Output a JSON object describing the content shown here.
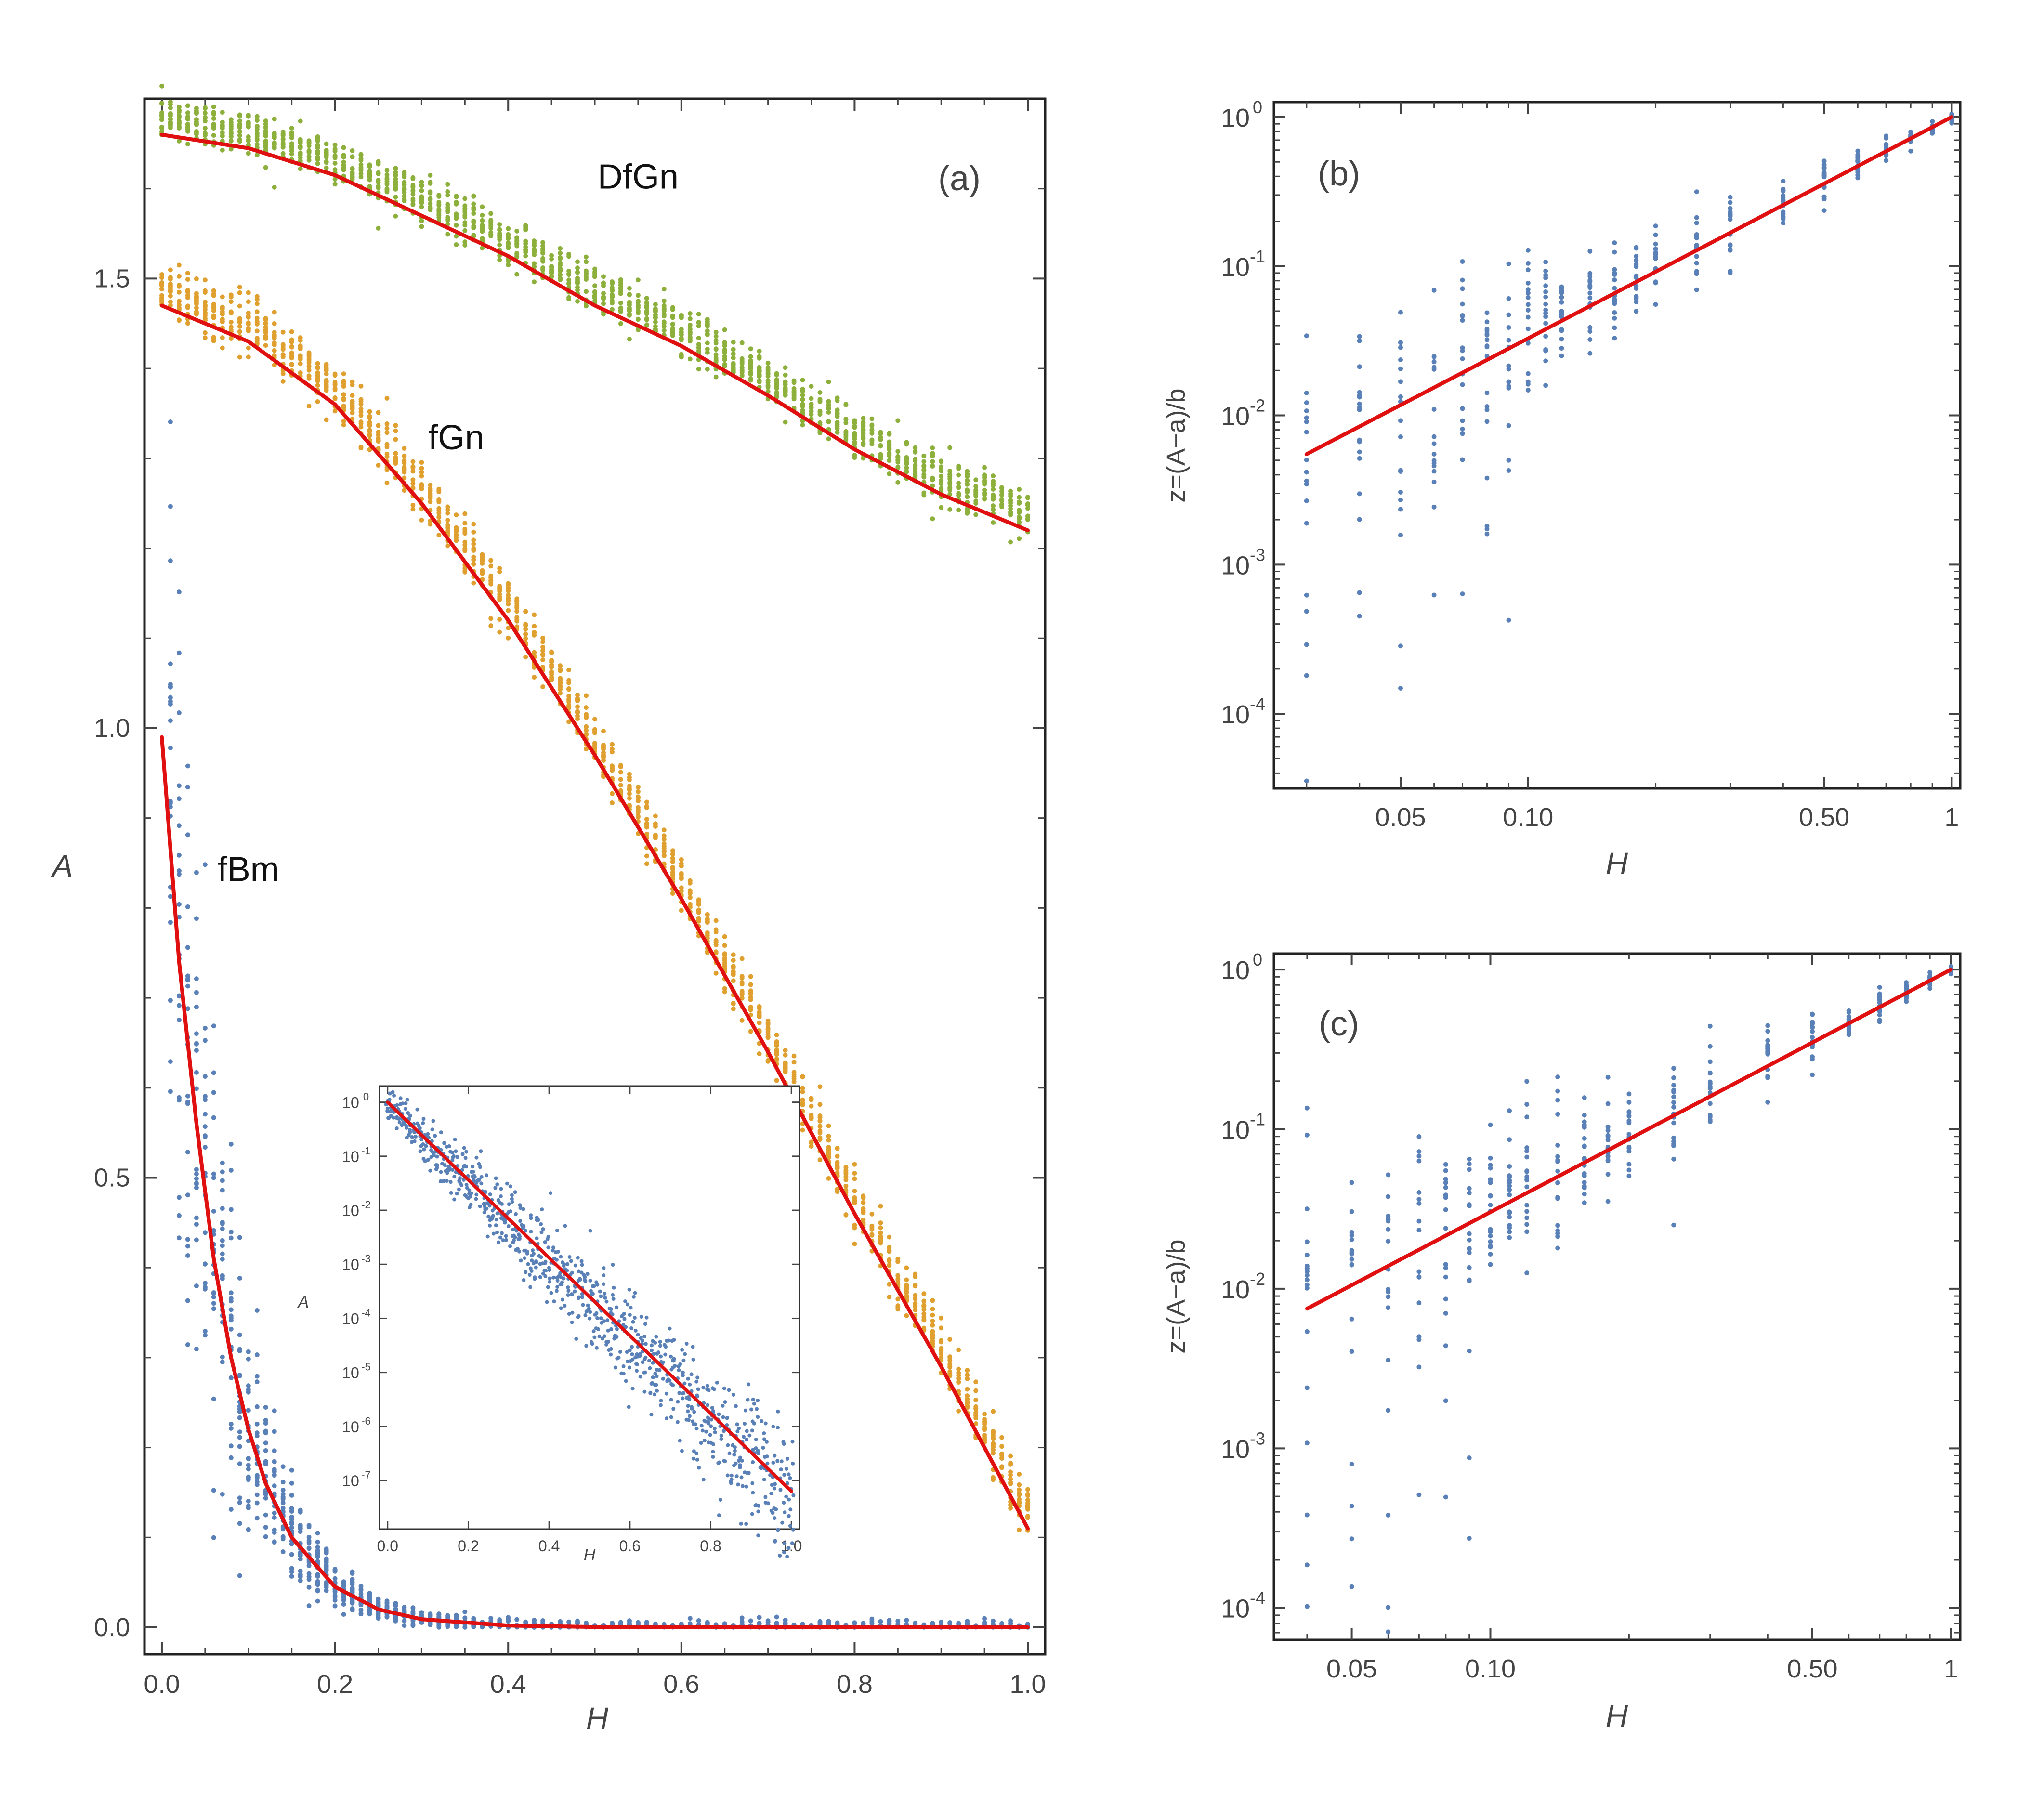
{
  "chart_data": [
    {
      "id": "a",
      "type": "scatter",
      "panel_label": "(a)",
      "xlabel": "H",
      "ylabel": "A",
      "xlim": [
        -0.02,
        1.02
      ],
      "ylim": [
        -0.03,
        1.7
      ],
      "xticks": [
        0.0,
        0.2,
        0.4,
        0.6,
        0.8,
        1.0
      ],
      "xtick_labels": [
        "0.0",
        "0.2",
        "0.4",
        "0.6",
        "0.8",
        "1.0"
      ],
      "yticks": [
        0.0,
        0.5,
        1.0,
        1.5
      ],
      "ytick_labels": [
        "0.0",
        "0.5",
        "1.0",
        "1.5"
      ],
      "series": [
        {
          "name": "DfGn",
          "label": "DfGn",
          "label_at": [
            0.55,
            1.6
          ],
          "color": "#8db03c",
          "fit": {
            "x": [
              0,
              0.1,
              0.2,
              0.3,
              0.4,
              0.5,
              0.6,
              0.7,
              0.8,
              0.9,
              1.0
            ],
            "y": [
              1.66,
              1.645,
              1.615,
              1.57,
              1.525,
              1.47,
              1.425,
              1.37,
              1.31,
              1.26,
              1.22
            ]
          }
        },
        {
          "name": "fGn",
          "label": "fGn",
          "label_at": [
            0.34,
            1.31
          ],
          "color": "#e0a030",
          "fit": {
            "x": [
              0,
              0.1,
              0.2,
              0.3,
              0.4,
              0.5,
              0.6,
              0.7,
              0.8,
              0.9,
              1.0
            ],
            "y": [
              1.47,
              1.43,
              1.36,
              1.25,
              1.12,
              0.97,
              0.81,
              0.64,
              0.46,
              0.29,
              0.11
            ]
          }
        },
        {
          "name": "fBm",
          "label": "fBm",
          "label_at": [
            0.1,
            0.83
          ],
          "color": "#5a80b8",
          "fit": {
            "x": [
              0,
              0.02,
              0.04,
              0.06,
              0.08,
              0.1,
              0.12,
              0.15,
              0.2,
              0.25,
              0.3,
              0.4,
              0.5,
              0.6,
              0.8,
              1.0
            ],
            "y": [
              0.99,
              0.74,
              0.56,
              0.41,
              0.3,
              0.22,
              0.16,
              0.1,
              0.045,
              0.02,
              0.009,
              0.002,
              0.0004,
              0.0001,
              0.0,
              0.0
            ]
          }
        }
      ],
      "inset": {
        "type": "scatter",
        "xlabel": "H",
        "ylabel": "A",
        "xlim": [
          -0.02,
          1.02
        ],
        "log_ylim": [
          -7.9,
          0.3
        ],
        "xticks": [
          0.0,
          0.2,
          0.4,
          0.6,
          0.8,
          1.0
        ],
        "xtick_labels": [
          "0.0",
          "0.2",
          "0.4",
          "0.6",
          "0.8",
          "1.0"
        ],
        "yticks_exp": [
          0,
          -1,
          -2,
          -3,
          -4,
          -5,
          -6,
          -7
        ],
        "ytick_base": "10",
        "ytick_exponents": [
          "0",
          "-1",
          "-2",
          "-3",
          "-4",
          "-5",
          "-6",
          "-7"
        ],
        "fit": {
          "x": [
            0,
            1.0
          ],
          "log_y": [
            0,
            -7.2
          ]
        }
      }
    },
    {
      "id": "b",
      "type": "scatter",
      "panel_label": "(b)",
      "xscale": "log",
      "yscale": "log",
      "xlabel": "H",
      "ylabel": "z=(A−a)/b",
      "log_xlim": [
        -1.6,
        0.02
      ],
      "log_ylim": [
        -4.5,
        0.1
      ],
      "xticks": [
        0.05,
        0.1,
        0.5,
        1
      ],
      "xtick_labels": [
        "0.05",
        "0.10",
        "0.50",
        "1"
      ],
      "yticks_exp": [
        0,
        -1,
        -2,
        -3,
        -4
      ],
      "ytick_base": "10",
      "ytick_exponents": [
        "0",
        "-1",
        "-2",
        "-3",
        "-4"
      ],
      "x_values": [
        0.03,
        0.04,
        0.05,
        0.06,
        0.07,
        0.08,
        0.09,
        0.1,
        0.11,
        0.12,
        0.14,
        0.16,
        0.18,
        0.2,
        0.25,
        0.3,
        0.4,
        0.5,
        0.6,
        0.7,
        0.8,
        0.9,
        1.0
      ],
      "fit": {
        "x": [
          0.03,
          1.0
        ],
        "y": [
          0.0055,
          1.0
        ]
      }
    },
    {
      "id": "c",
      "type": "scatter",
      "panel_label": "(c)",
      "xscale": "log",
      "yscale": "log",
      "xlabel": "H",
      "ylabel": "z=(A−a)/b",
      "log_xlim": [
        -1.47,
        0.02
      ],
      "log_ylim": [
        -4.2,
        0.1
      ],
      "xticks": [
        0.05,
        0.1,
        0.5,
        1
      ],
      "xtick_labels": [
        "0.05",
        "0.10",
        "0.50",
        "1"
      ],
      "yticks_exp": [
        0,
        -1,
        -2,
        -3,
        -4
      ],
      "ytick_base": "10",
      "ytick_exponents": [
        "0",
        "-1",
        "-2",
        "-3",
        "-4"
      ],
      "x_values": [
        0.04,
        0.05,
        0.06,
        0.07,
        0.08,
        0.09,
        0.1,
        0.11,
        0.12,
        0.14,
        0.16,
        0.18,
        0.2,
        0.25,
        0.3,
        0.4,
        0.5,
        0.6,
        0.7,
        0.8,
        0.9,
        1.0
      ],
      "fit": {
        "x": [
          0.04,
          1.0
        ],
        "y": [
          0.0075,
          1.0
        ]
      }
    }
  ],
  "colors": {
    "fit_line": "#e01010",
    "scatter_blue": "#5a80b8",
    "scatter_orange": "#e0a030",
    "scatter_green": "#8db03c",
    "axis": "#222222"
  }
}
